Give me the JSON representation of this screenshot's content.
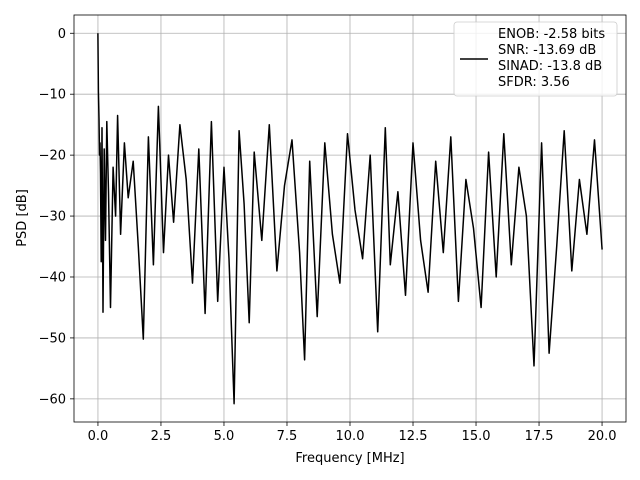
{
  "chart_data": {
    "type": "line",
    "title": "",
    "xlabel": "Frequency [MHz]",
    "ylabel": "PSD [dB]",
    "xlim": [
      -0.95,
      20.95
    ],
    "ylim": [
      -63.8,
      3.0
    ],
    "grid": true,
    "legend_position": "upper-right",
    "x_ticks": [
      0.0,
      2.5,
      5.0,
      7.5,
      10.0,
      12.5,
      15.0,
      17.5,
      20.0
    ],
    "x_tick_labels": [
      "0.0",
      "2.5",
      "5.0",
      "7.5",
      "10.0",
      "12.5",
      "15.0",
      "17.5",
      "20.0"
    ],
    "y_ticks": [
      0,
      -10,
      -20,
      -30,
      -40,
      -50,
      -60
    ],
    "y_tick_labels": [
      "0",
      "−10",
      "−20",
      "−30",
      "−40",
      "−50",
      "−60"
    ],
    "series": [
      {
        "name": "ENOB: -2.58 bits\nSNR: -13.69 dB\nSINAD: -13.8 dB\nSFDR: 3.56",
        "color": "#000000",
        "x": [
          0.0,
          0.02,
          0.04,
          0.06,
          0.08,
          0.1,
          0.13,
          0.16,
          0.2,
          0.25,
          0.3,
          0.35,
          0.42,
          0.5,
          0.6,
          0.7,
          0.78,
          0.9,
          1.05,
          1.2,
          1.4,
          1.6,
          1.8,
          2.0,
          2.2,
          2.4,
          2.6,
          2.8,
          3.0,
          3.25,
          3.5,
          3.75,
          4.0,
          4.25,
          4.5,
          4.75,
          5.0,
          5.2,
          5.4,
          5.6,
          5.8,
          6.0,
          6.2,
          6.5,
          6.8,
          7.1,
          7.4,
          7.7,
          8.0,
          8.2,
          8.4,
          8.7,
          9.0,
          9.3,
          9.6,
          9.9,
          10.2,
          10.5,
          10.8,
          11.1,
          11.4,
          11.6,
          11.9,
          12.2,
          12.5,
          12.8,
          13.1,
          13.4,
          13.7,
          14.0,
          14.3,
          14.6,
          14.9,
          15.2,
          15.5,
          15.8,
          16.1,
          16.4,
          16.7,
          17.0,
          17.3,
          17.6,
          17.9,
          18.2,
          18.5,
          18.8,
          19.1,
          19.4,
          19.7,
          20.0
        ],
        "values": [
          0.0,
          -9.5,
          -14.0,
          -20.0,
          -18.0,
          -23.0,
          -37.5,
          -15.5,
          -45.8,
          -19.0,
          -34.0,
          -14.5,
          -26.0,
          -45.0,
          -22.0,
          -30.0,
          -13.5,
          -33.0,
          -18.0,
          -27.0,
          -21.0,
          -35.0,
          -50.2,
          -17.0,
          -38.0,
          -12.0,
          -36.0,
          -20.0,
          -31.0,
          -15.0,
          -24.0,
          -41.0,
          -19.0,
          -46.0,
          -14.5,
          -44.0,
          -22.0,
          -37.0,
          -60.8,
          -16.0,
          -28.0,
          -47.5,
          -19.5,
          -34.0,
          -15.0,
          -39.0,
          -25.0,
          -17.5,
          -36.0,
          -53.6,
          -21.0,
          -46.5,
          -18.0,
          -33.0,
          -41.0,
          -16.5,
          -29.0,
          -37.0,
          -20.0,
          -49.0,
          -15.5,
          -38.0,
          -26.0,
          -43.0,
          -18.0,
          -34.0,
          -42.5,
          -21.0,
          -36.0,
          -17.0,
          -44.0,
          -24.0,
          -32.0,
          -45.0,
          -19.5,
          -40.0,
          -16.5,
          -38.0,
          -22.0,
          -30.0,
          -54.6,
          -18.0,
          -52.5,
          -35.0,
          -16.0,
          -39.0,
          -24.0,
          -33.0,
          -17.5,
          -35.5
        ]
      }
    ]
  }
}
